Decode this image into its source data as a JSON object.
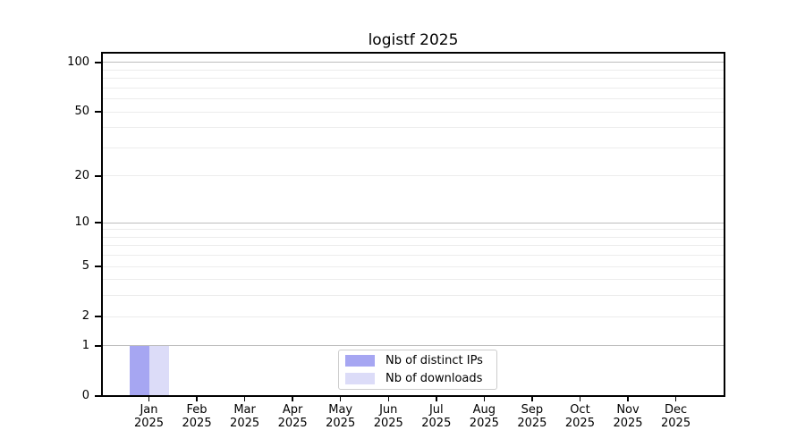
{
  "chart_data": {
    "type": "bar",
    "title": "logistf 2025",
    "categories": [
      "Jan",
      "Feb",
      "Mar",
      "Apr",
      "May",
      "Jun",
      "Jul",
      "Aug",
      "Sep",
      "Oct",
      "Nov",
      "Dec"
    ],
    "category_year": "2025",
    "series": [
      {
        "name": "Nb of distinct IPs",
        "color": "#a6a6f2",
        "values": [
          1,
          0,
          0,
          0,
          0,
          0,
          0,
          0,
          0,
          0,
          0,
          0
        ]
      },
      {
        "name": "Nb of downloads",
        "color": "#dcdcf8",
        "values": [
          1,
          0,
          0,
          0,
          0,
          0,
          0,
          0,
          0,
          0,
          0,
          0
        ]
      }
    ],
    "y_scale": "log1p",
    "y_ticks": [
      0,
      1,
      2,
      5,
      10,
      20,
      50,
      100
    ],
    "ylim": [
      0,
      115
    ],
    "xlabel": "",
    "ylabel": "",
    "grid": "horizontal",
    "major_grid_values": [
      1,
      10,
      100
    ],
    "colors": {
      "grid_major": "#bdbdbd",
      "grid_minor": "#ececec",
      "axis": "#000000",
      "legend_border": "#cccccc",
      "background": "#ffffff"
    },
    "legend_position": "bottom-center"
  }
}
